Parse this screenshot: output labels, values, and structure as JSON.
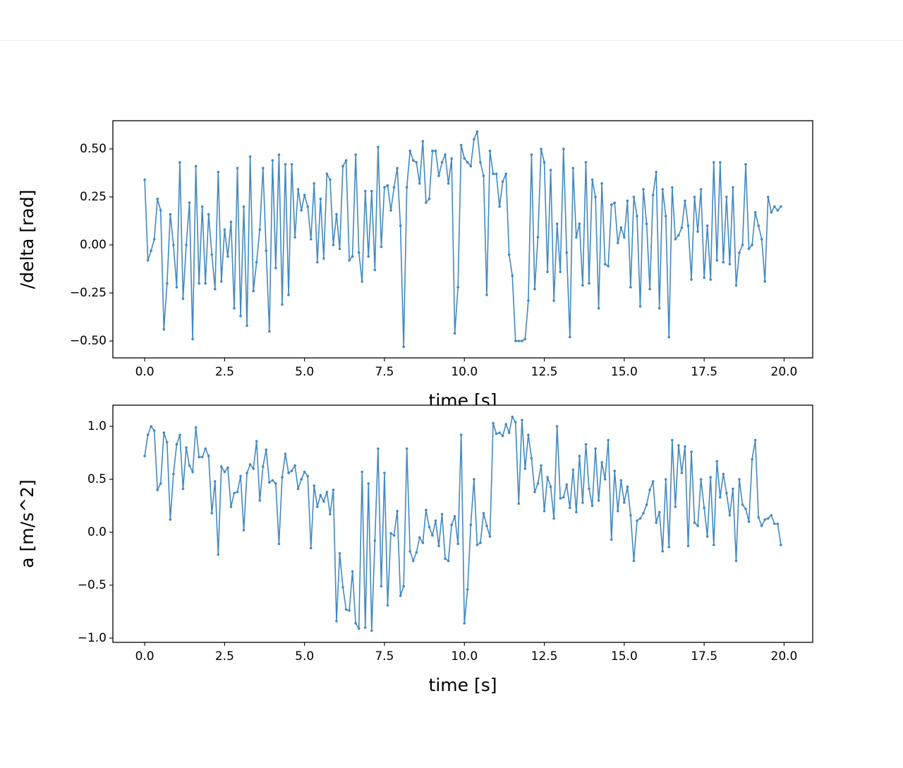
{
  "chart_data": [
    {
      "type": "line",
      "xlabel": "time [s]",
      "ylabel": "/delta [rad]",
      "color": "#4289c1",
      "markers": true,
      "xlim": [
        -0.995,
        20.895
      ],
      "ylim": [
        -0.588,
        0.647
      ],
      "xticks": [
        {
          "value": 0,
          "label": "0.0"
        },
        {
          "value": 2.5,
          "label": "2.5"
        },
        {
          "value": 5,
          "label": "5.0"
        },
        {
          "value": 7.5,
          "label": "7.5"
        },
        {
          "value": 10,
          "label": "10.0"
        },
        {
          "value": 12.5,
          "label": "12.5"
        },
        {
          "value": 15,
          "label": "15.0"
        },
        {
          "value": 17.5,
          "label": "17.5"
        },
        {
          "value": 20,
          "label": "20.0"
        }
      ],
      "yticks": [
        {
          "value": -0.5,
          "label": "−0.50"
        },
        {
          "value": -0.25,
          "label": "−0.25"
        },
        {
          "value": 0,
          "label": "0.00"
        },
        {
          "value": 0.25,
          "label": "0.25"
        },
        {
          "value": 0.5,
          "label": "0.50"
        }
      ],
      "x": [
        0,
        0.1,
        0.2,
        0.3,
        0.4,
        0.5,
        0.6,
        0.7,
        0.8,
        0.9,
        1,
        1.1,
        1.2,
        1.3,
        1.4,
        1.5,
        1.6,
        1.7,
        1.8,
        1.9,
        2,
        2.1,
        2.2,
        2.3,
        2.4,
        2.5,
        2.6,
        2.7,
        2.8,
        2.9,
        3,
        3.1,
        3.2,
        3.3,
        3.4,
        3.5,
        3.6,
        3.7,
        3.8,
        3.9,
        4,
        4.1,
        4.2,
        4.3,
        4.4,
        4.5,
        4.6,
        4.7,
        4.8,
        4.9,
        5,
        5.1,
        5.2,
        5.3,
        5.4,
        5.5,
        5.6,
        5.7,
        5.8,
        5.9,
        6,
        6.1,
        6.2,
        6.3,
        6.4,
        6.5,
        6.6,
        6.7,
        6.8,
        6.9,
        7,
        7.1,
        7.2,
        7.3,
        7.4,
        7.5,
        7.6,
        7.7,
        7.8,
        7.9,
        8,
        8.1,
        8.2,
        8.3,
        8.4,
        8.5,
        8.6,
        8.7,
        8.8,
        8.9,
        9,
        9.1,
        9.2,
        9.3,
        9.4,
        9.5,
        9.6,
        9.7,
        9.8,
        9.9,
        10,
        10.1,
        10.2,
        10.3,
        10.4,
        10.5,
        10.6,
        10.7,
        10.8,
        10.9,
        11,
        11.1,
        11.2,
        11.3,
        11.4,
        11.5,
        11.6,
        11.7,
        11.8,
        11.9,
        12,
        12.1,
        12.2,
        12.3,
        12.4,
        12.5,
        12.6,
        12.7,
        12.8,
        12.9,
        13,
        13.1,
        13.2,
        13.3,
        13.4,
        13.5,
        13.6,
        13.7,
        13.8,
        13.9,
        14,
        14.1,
        14.2,
        14.3,
        14.4,
        14.5,
        14.6,
        14.7,
        14.8,
        14.9,
        15,
        15.1,
        15.2,
        15.3,
        15.4,
        15.5,
        15.6,
        15.7,
        15.8,
        15.9,
        16,
        16.1,
        16.2,
        16.3,
        16.4,
        16.5,
        16.6,
        16.7,
        16.8,
        16.9,
        17,
        17.1,
        17.2,
        17.3,
        17.4,
        17.5,
        17.6,
        17.7,
        17.8,
        17.9,
        18,
        18.1,
        18.2,
        18.3,
        18.4,
        18.5,
        18.6,
        18.7,
        18.8,
        18.9,
        19,
        19.1,
        19.2,
        19.3,
        19.4,
        19.5,
        19.6,
        19.7,
        19.8,
        19.9
      ],
      "values": [
        0.34,
        -0.08,
        -0.03,
        0.03,
        0.24,
        0.18,
        -0.44,
        -0.2,
        0.16,
        0.0,
        -0.22,
        0.43,
        -0.28,
        0.0,
        0.22,
        -0.49,
        0.41,
        -0.2,
        0.2,
        -0.2,
        0.16,
        -0.05,
        -0.23,
        0.38,
        -0.19,
        0.08,
        -0.06,
        0.12,
        -0.33,
        0.4,
        -0.37,
        0.2,
        -0.42,
        0.46,
        -0.24,
        -0.09,
        0.08,
        0.4,
        -0.03,
        -0.45,
        0.44,
        -0.12,
        0.47,
        -0.31,
        0.42,
        -0.26,
        0.42,
        0.04,
        0.29,
        0.18,
        0.26,
        0.2,
        0.03,
        0.32,
        -0.09,
        0.24,
        -0.07,
        0.37,
        0.34,
        0.0,
        0.16,
        -0.02,
        0.41,
        0.44,
        -0.08,
        -0.06,
        0.47,
        -0.04,
        -0.19,
        0.28,
        -0.06,
        0.28,
        -0.13,
        0.51,
        -0.01,
        0.3,
        0.31,
        0.18,
        0.3,
        0.4,
        0.1,
        -0.53,
        0.3,
        0.49,
        0.44,
        0.43,
        0.32,
        0.54,
        0.22,
        0.24,
        0.49,
        0.49,
        0.36,
        0.43,
        0.47,
        0.32,
        0.45,
        -0.46,
        -0.22,
        0.52,
        0.45,
        0.43,
        0.41,
        0.55,
        0.59,
        0.43,
        0.36,
        -0.26,
        0.49,
        0.37,
        0.37,
        0.2,
        0.33,
        0.37,
        -0.05,
        -0.16,
        -0.5,
        -0.5,
        -0.5,
        -0.49,
        -0.29,
        0.47,
        -0.23,
        0.04,
        0.5,
        0.43,
        -0.14,
        0.39,
        -0.29,
        0.11,
        -0.14,
        0.5,
        -0.04,
        -0.48,
        0.4,
        0.04,
        0.11,
        -0.21,
        0.43,
        -0.2,
        0.34,
        0.25,
        -0.33,
        0.32,
        -0.1,
        -0.11,
        0.21,
        0.22,
        0.01,
        0.09,
        0.04,
        0.23,
        -0.22,
        0.25,
        0.15,
        -0.32,
        0.29,
        0.11,
        -0.23,
        0.26,
        0.38,
        -0.33,
        0.29,
        0.15,
        -0.48,
        0.3,
        0.03,
        0.05,
        0.09,
        0.23,
        0.1,
        -0.18,
        0.25,
        0.07,
        0.29,
        -0.17,
        0.1,
        -0.18,
        0.43,
        -0.08,
        0.43,
        -0.09,
        0.25,
        -0.1,
        0.3,
        -0.21,
        -0.04,
        0.0,
        0.42,
        -0.02,
        0.0,
        0.17,
        0.1,
        0.03,
        -0.19,
        0.25,
        0.17,
        0.2,
        0.18,
        0.2
      ]
    },
    {
      "type": "line",
      "xlabel": "time [s]",
      "ylabel": "a [m/s^2]",
      "color": "#4289c1",
      "markers": true,
      "xlim": [
        -0.995,
        20.895
      ],
      "ylim": [
        -1.04,
        1.2
      ],
      "xticks": [
        {
          "value": 0,
          "label": "0.0"
        },
        {
          "value": 2.5,
          "label": "2.5"
        },
        {
          "value": 5,
          "label": "5.0"
        },
        {
          "value": 7.5,
          "label": "7.5"
        },
        {
          "value": 10,
          "label": "10.0"
        },
        {
          "value": 12.5,
          "label": "12.5"
        },
        {
          "value": 15,
          "label": "15.0"
        },
        {
          "value": 17.5,
          "label": "17.5"
        },
        {
          "value": 20,
          "label": "20.0"
        }
      ],
      "yticks": [
        {
          "value": -1,
          "label": "−1.0"
        },
        {
          "value": -0.5,
          "label": "−0.5"
        },
        {
          "value": 0,
          "label": "0.0"
        },
        {
          "value": 0.5,
          "label": "0.5"
        },
        {
          "value": 1,
          "label": "1.0"
        }
      ],
      "x": [
        0,
        0.1,
        0.2,
        0.3,
        0.4,
        0.5,
        0.6,
        0.7,
        0.8,
        0.9,
        1,
        1.1,
        1.2,
        1.3,
        1.4,
        1.5,
        1.6,
        1.7,
        1.8,
        1.9,
        2,
        2.1,
        2.2,
        2.3,
        2.4,
        2.5,
        2.6,
        2.7,
        2.8,
        2.9,
        3,
        3.1,
        3.2,
        3.3,
        3.4,
        3.5,
        3.6,
        3.7,
        3.8,
        3.9,
        4,
        4.1,
        4.2,
        4.3,
        4.4,
        4.5,
        4.6,
        4.7,
        4.8,
        4.9,
        5,
        5.1,
        5.2,
        5.3,
        5.4,
        5.5,
        5.6,
        5.7,
        5.8,
        5.9,
        6,
        6.1,
        6.2,
        6.3,
        6.4,
        6.5,
        6.6,
        6.7,
        6.8,
        6.9,
        7,
        7.1,
        7.2,
        7.3,
        7.4,
        7.5,
        7.6,
        7.7,
        7.8,
        7.9,
        8,
        8.1,
        8.2,
        8.3,
        8.4,
        8.5,
        8.6,
        8.7,
        8.8,
        8.9,
        9,
        9.1,
        9.2,
        9.3,
        9.4,
        9.5,
        9.6,
        9.7,
        9.8,
        9.9,
        10,
        10.1,
        10.2,
        10.3,
        10.4,
        10.5,
        10.6,
        10.7,
        10.8,
        10.9,
        11,
        11.1,
        11.2,
        11.3,
        11.4,
        11.5,
        11.6,
        11.7,
        11.8,
        11.9,
        12,
        12.1,
        12.2,
        12.3,
        12.4,
        12.5,
        12.6,
        12.7,
        12.8,
        12.9,
        13,
        13.1,
        13.2,
        13.3,
        13.4,
        13.5,
        13.6,
        13.7,
        13.8,
        13.9,
        14,
        14.1,
        14.2,
        14.3,
        14.4,
        14.5,
        14.6,
        14.7,
        14.8,
        14.9,
        15,
        15.1,
        15.2,
        15.3,
        15.4,
        15.5,
        15.6,
        15.7,
        15.8,
        15.9,
        16,
        16.1,
        16.2,
        16.3,
        16.4,
        16.5,
        16.6,
        16.7,
        16.8,
        16.9,
        17,
        17.1,
        17.2,
        17.3,
        17.4,
        17.5,
        17.6,
        17.7,
        17.8,
        17.9,
        18,
        18.1,
        18.2,
        18.3,
        18.4,
        18.5,
        18.6,
        18.7,
        18.8,
        18.9,
        19,
        19.1,
        19.2,
        19.3,
        19.4,
        19.5,
        19.6,
        19.7,
        19.8,
        19.9
      ],
      "values": [
        0.72,
        0.92,
        1.0,
        0.96,
        0.4,
        0.46,
        0.94,
        0.85,
        0.12,
        0.55,
        0.83,
        0.92,
        0.41,
        0.8,
        0.63,
        0.57,
        0.99,
        0.71,
        0.71,
        0.79,
        0.72,
        0.18,
        0.48,
        -0.21,
        0.62,
        0.57,
        0.61,
        0.24,
        0.37,
        0.38,
        0.53,
        0.02,
        0.56,
        0.64,
        0.6,
        0.86,
        0.3,
        0.62,
        0.78,
        0.47,
        0.49,
        0.46,
        -0.11,
        0.52,
        0.74,
        0.56,
        0.58,
        0.63,
        0.41,
        0.5,
        0.57,
        0.53,
        -0.15,
        0.44,
        0.24,
        0.35,
        0.29,
        0.38,
        0.17,
        0.4,
        -0.84,
        -0.2,
        -0.52,
        -0.73,
        -0.74,
        -0.37,
        -0.86,
        -0.91,
        0.57,
        -0.9,
        0.46,
        -0.93,
        -0.08,
        0.79,
        -0.51,
        0.56,
        -0.69,
        -0.01,
        -0.03,
        0.2,
        -0.6,
        -0.51,
        0.79,
        -0.18,
        -0.27,
        -0.19,
        -0.05,
        -0.1,
        0.21,
        0.05,
        -0.03,
        0.11,
        -0.13,
        0.17,
        -0.25,
        -0.27,
        0.07,
        0.15,
        -0.11,
        0.92,
        -0.86,
        -0.54,
        0.07,
        0.5,
        -0.12,
        -0.1,
        0.18,
        0.06,
        -0.04,
        1.03,
        0.93,
        0.94,
        0.91,
        1.02,
        0.94,
        1.09,
        1.04,
        0.27,
        1.06,
        0.6,
        0.92,
        0.7,
        0.38,
        0.46,
        0.63,
        0.2,
        0.52,
        0.43,
        0.13,
        1.0,
        0.32,
        0.33,
        0.45,
        0.23,
        0.59,
        0.19,
        0.72,
        0.28,
        0.83,
        0.41,
        0.25,
        0.79,
        0.3,
        0.66,
        0.5,
        0.87,
        -0.07,
        0.58,
        0.2,
        0.49,
        0.28,
        0.43,
        0.16,
        -0.27,
        0.11,
        0.13,
        0.18,
        0.26,
        0.4,
        0.48,
        0.09,
        0.19,
        -0.18,
        0.5,
        -0.14,
        0.87,
        0.24,
        0.82,
        0.56,
        0.81,
        -0.13,
        0.76,
        0.09,
        0.06,
        0.5,
        0.23,
        -0.04,
        0.52,
        -0.12,
        0.67,
        0.33,
        0.55,
        0.37,
        0.16,
        0.41,
        -0.27,
        0.5,
        0.26,
        0.22,
        0.1,
        0.69,
        0.87,
        0.14,
        0.06,
        0.12,
        0.13,
        0.16,
        0.08,
        0.08,
        -0.12
      ]
    }
  ]
}
